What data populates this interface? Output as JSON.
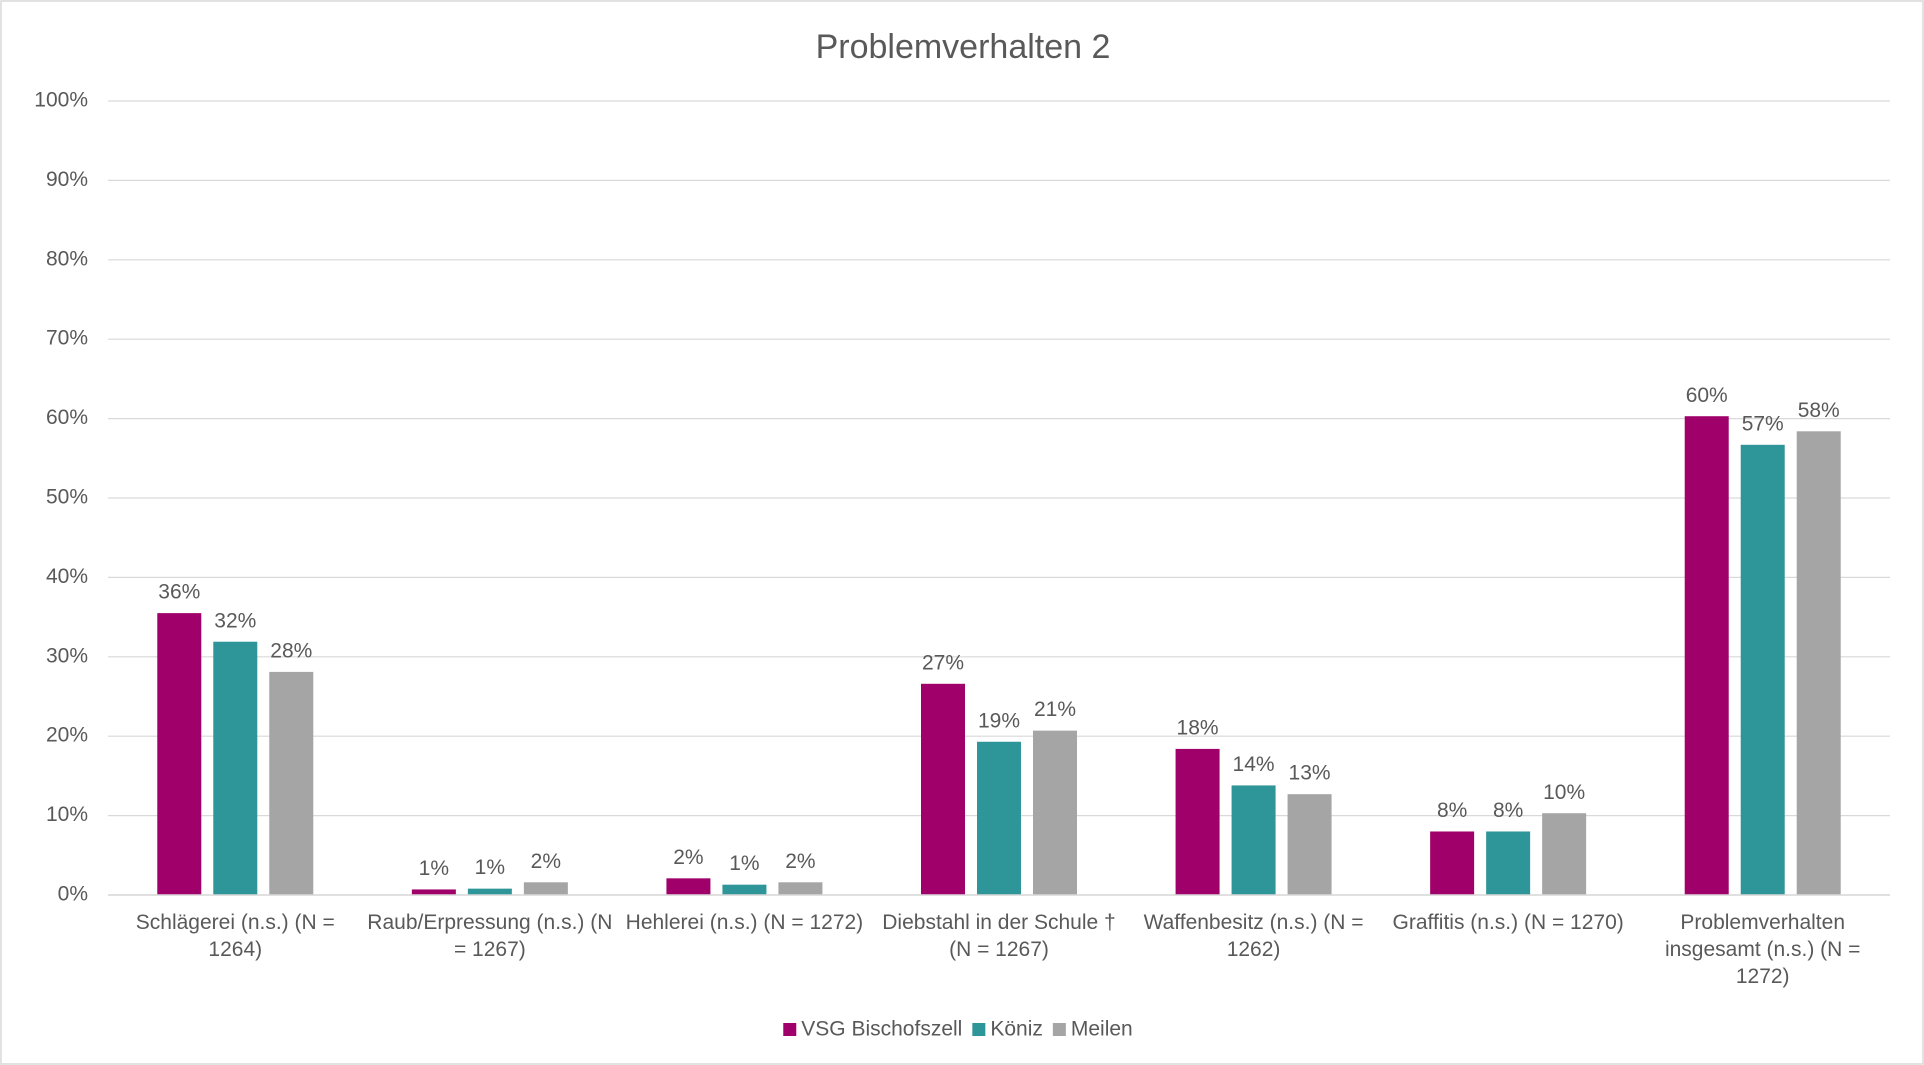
{
  "chart_data": {
    "type": "bar",
    "title": "Problemverhalten 2",
    "categories": [
      "Schlägerei (n.s.) (N = 1264)",
      "Raub/Erpressung (n.s.) (N = 1267)",
      "Hehlerei (n.s.) (N = 1272)",
      "Diebstahl in der Schule † (N = 1267)",
      "Waffenbesitz (n.s.) (N = 1262)",
      "Graffitis (n.s.) (N = 1270)",
      "Problemverhalten insgesamt (n.s.) (N = 1272)"
    ],
    "series": [
      {
        "name": "VSG Bischofszell",
        "color": "#a0006a",
        "values": [
          35.5,
          0.7,
          2.1,
          26.6,
          18.4,
          8.0,
          60.3
        ],
        "value_labels": [
          "36%",
          "1%",
          "2%",
          "27%",
          "18%",
          "8%",
          "60%"
        ]
      },
      {
        "name": "Köniz",
        "color": "#2e9599",
        "values": [
          31.9,
          0.8,
          1.3,
          19.3,
          13.8,
          8.0,
          56.7
        ],
        "value_labels": [
          "32%",
          "1%",
          "1%",
          "19%",
          "14%",
          "8%",
          "57%"
        ]
      },
      {
        "name": "Meilen",
        "color": "#a5a5a5",
        "values": [
          28.1,
          1.6,
          1.6,
          20.7,
          12.7,
          10.3,
          58.4
        ],
        "value_labels": [
          "28%",
          "2%",
          "2%",
          "21%",
          "13%",
          "10%",
          "58%"
        ]
      }
    ],
    "ylim": [
      0,
      100
    ],
    "yticks": [
      {
        "value": 0,
        "label": "0%"
      },
      {
        "value": 10,
        "label": "10%"
      },
      {
        "value": 20,
        "label": "20%"
      },
      {
        "value": 30,
        "label": "30%"
      },
      {
        "value": 40,
        "label": "40%"
      },
      {
        "value": 50,
        "label": "50%"
      },
      {
        "value": 60,
        "label": "60%"
      },
      {
        "value": 70,
        "label": "70%"
      },
      {
        "value": 80,
        "label": "80%"
      },
      {
        "value": 90,
        "label": "90%"
      },
      {
        "value": 100,
        "label": "100%"
      }
    ],
    "grid": true,
    "legend": "bottom"
  }
}
